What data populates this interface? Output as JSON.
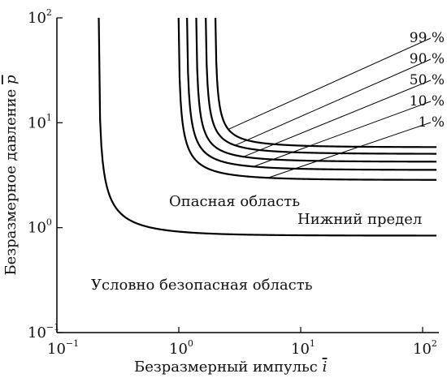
{
  "chart_data": {
    "type": "line",
    "title": "",
    "xlabel": "Безразмерный импульс",
    "xlabel_symbol": "i",
    "ylabel": "Безразмерное давление",
    "ylabel_symbol": "p",
    "x_scale": "log",
    "y_scale": "log",
    "xlim": [
      0.1,
      130
    ],
    "ylim": [
      0.1,
      100
    ],
    "grid": false,
    "x_ticks": [
      {
        "value": 0.1,
        "base": "10",
        "exp": "−1"
      },
      {
        "value": 1,
        "base": "10",
        "exp": "0"
      },
      {
        "value": 10,
        "base": "10",
        "exp": "1"
      },
      {
        "value": 100,
        "base": "10",
        "exp": "2"
      }
    ],
    "y_ticks": [
      {
        "value": 0.1,
        "base": "10",
        "exp": "−1"
      },
      {
        "value": 1,
        "base": "10",
        "exp": "0"
      },
      {
        "value": 10,
        "base": "10",
        "exp": "1"
      },
      {
        "value": 100,
        "base": "10",
        "exp": "2"
      }
    ],
    "series": [
      {
        "label": "Нижний предел",
        "x_asymptote": 0.22,
        "y_asymptote": 0.84,
        "k": 0.06
      },
      {
        "label": "1 %",
        "x_asymptote": 0.99,
        "y_asymptote": 2.85,
        "k": 0.6
      },
      {
        "label": "10 %",
        "x_asymptote": 1.16,
        "y_asymptote": 3.55,
        "k": 0.8
      },
      {
        "label": "50 %",
        "x_asymptote": 1.38,
        "y_asymptote": 4.25,
        "k": 1.0
      },
      {
        "label": "90 %",
        "x_asymptote": 1.65,
        "y_asymptote": 5.05,
        "k": 1.3
      },
      {
        "label": "99 %",
        "x_asymptote": 1.98,
        "y_asymptote": 5.85,
        "k": 1.6
      }
    ],
    "annotations": [
      {
        "text": "Опасная область"
      },
      {
        "text": "Условно безопасная область"
      }
    ]
  }
}
